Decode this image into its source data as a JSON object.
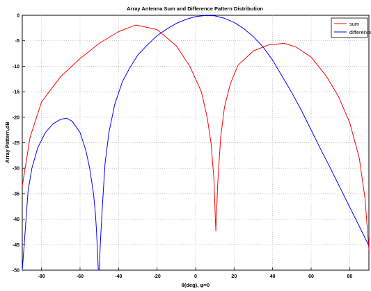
{
  "chart_data": {
    "type": "line",
    "title": "Array Antenna Sum and Difference Pattern Distribution",
    "xlabel": "θ(deg), φ=0",
    "ylabel": "Array Pattern,dB",
    "xlim": [
      -90,
      90
    ],
    "ylim": [
      -50,
      0
    ],
    "xticks": [
      "-80",
      "-60",
      "-40",
      "-20",
      "0",
      "20",
      "40",
      "60",
      "80"
    ],
    "yticks": [
      "0",
      "-5",
      "-10",
      "-15",
      "-20",
      "-25",
      "-30",
      "-35",
      "-40",
      "-45",
      "-50"
    ],
    "grid": true,
    "legend_position": "top-right",
    "series": [
      {
        "name": "sum",
        "color": "#ff0000",
        "x": [
          -90,
          -86,
          -80,
          -70,
          -60,
          -50,
          -40,
          -31,
          -20,
          -10,
          -3,
          3,
          6,
          8,
          9.5,
          10.5,
          11.5,
          13,
          15,
          18,
          22,
          30,
          38,
          46,
          52,
          60,
          68,
          74,
          80,
          85,
          88,
          90
        ],
        "y": [
          -33.5,
          -24,
          -17,
          -12,
          -8.5,
          -5.5,
          -3.2,
          -1.9,
          -2.8,
          -6,
          -10,
          -15,
          -20,
          -25,
          -32,
          -42.3,
          -33,
          -24,
          -18,
          -13.5,
          -9.8,
          -7,
          -5.8,
          -5.5,
          -6.2,
          -8.2,
          -12,
          -15.8,
          -21,
          -28,
          -36,
          -46
        ]
      },
      {
        "name": "difference",
        "color": "#0000ff",
        "x": [
          -90,
          -89,
          -87,
          -85,
          -82,
          -78,
          -74,
          -70,
          -67,
          -64,
          -60,
          -57,
          -55,
          -53,
          -52,
          -51.5,
          -51,
          -50.5,
          -50,
          -49.5,
          -48.5,
          -47,
          -45,
          -42,
          -38,
          -34,
          -30,
          -25,
          -20,
          -15,
          -10,
          -5,
          0,
          5,
          10,
          15,
          20,
          25,
          30,
          35,
          40,
          45,
          50,
          55,
          60,
          65,
          70,
          75,
          80,
          85,
          88,
          90
        ],
        "y": [
          -50,
          -45,
          -34.5,
          -30,
          -26,
          -23,
          -21.3,
          -20.4,
          -20.2,
          -20.8,
          -23,
          -26.5,
          -30,
          -35,
          -39,
          -42,
          -46,
          -50,
          -50,
          -45,
          -38,
          -29,
          -23,
          -17.5,
          -13,
          -10.2,
          -7.8,
          -5.8,
          -4,
          -2.7,
          -1.6,
          -0.8,
          -0.25,
          -0.05,
          -0.1,
          -0.6,
          -1.4,
          -2.6,
          -4.2,
          -6.2,
          -8.8,
          -12,
          -15.2,
          -18.7,
          -22.5,
          -26.3,
          -30,
          -33.8,
          -37.6,
          -41.4,
          -43.7,
          -45.2
        ]
      }
    ]
  }
}
